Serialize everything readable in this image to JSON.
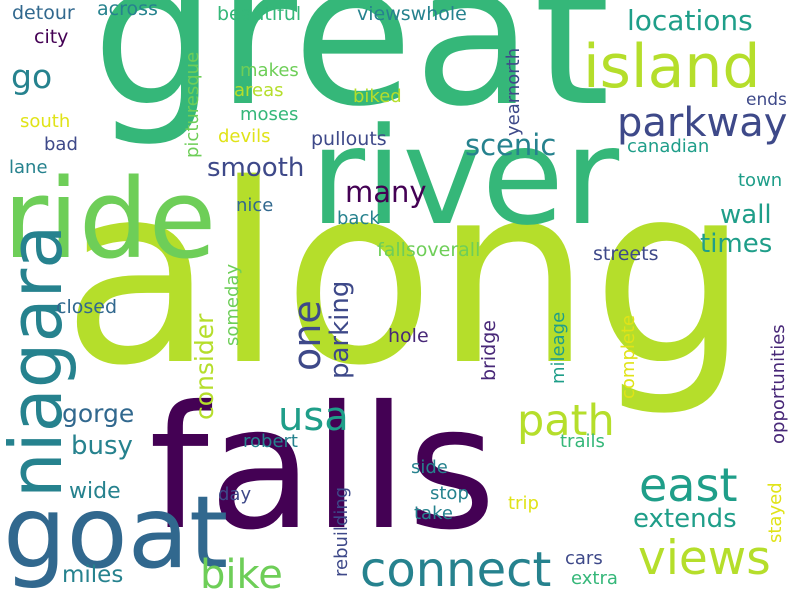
{
  "colors": {
    "background": "#ffffff",
    "dark_purple": "#440154",
    "purple": "#482878",
    "indigo": "#3e4989",
    "blue": "#31688e",
    "teal_blue": "#26828e",
    "teal": "#1f9e89",
    "green": "#35b779",
    "light_green": "#6ece58",
    "lime": "#b5de2b",
    "yellow": "#e0e318"
  },
  "words": [
    {
      "text": "along",
      "color": "#b5de2b"
    },
    {
      "text": "great",
      "color": "#35b779"
    },
    {
      "text": "falls",
      "color": "#440154"
    },
    {
      "text": "river",
      "color": "#35b779"
    },
    {
      "text": "ride",
      "color": "#6ece58"
    },
    {
      "text": "goat",
      "color": "#31688e"
    },
    {
      "text": "niagara",
      "color": "#26828e"
    },
    {
      "text": "island",
      "color": "#b5de2b"
    },
    {
      "text": "connect",
      "color": "#26828e"
    },
    {
      "text": "views",
      "color": "#b5de2b"
    },
    {
      "text": "parkway",
      "color": "#3e4989"
    },
    {
      "text": "east",
      "color": "#1f9e89"
    },
    {
      "text": "path",
      "color": "#b5de2b"
    },
    {
      "text": "bike",
      "color": "#6ece58"
    },
    {
      "text": "usa",
      "color": "#1f9e89"
    },
    {
      "text": "one",
      "color": "#3e4989"
    },
    {
      "text": "locations",
      "color": "#1f9e89"
    },
    {
      "text": "scenic",
      "color": "#26828e"
    },
    {
      "text": "go",
      "color": "#26828e"
    },
    {
      "text": "smooth",
      "color": "#3e4989"
    },
    {
      "text": "many",
      "color": "#440154"
    },
    {
      "text": "parking",
      "color": "#3e4989"
    },
    {
      "text": "consider",
      "color": "#b5de2b"
    },
    {
      "text": "wall",
      "color": "#1f9e89"
    },
    {
      "text": "times",
      "color": "#1f9e89"
    },
    {
      "text": "gorge",
      "color": "#31688e"
    },
    {
      "text": "busy",
      "color": "#26828e"
    },
    {
      "text": "extends",
      "color": "#1f9e89"
    },
    {
      "text": "miles",
      "color": "#26828e"
    },
    {
      "text": "wide",
      "color": "#26828e"
    },
    {
      "text": "beautiful",
      "color": "#35b779"
    },
    {
      "text": "viewswhole",
      "color": "#26828e"
    },
    {
      "text": "detour",
      "color": "#31688e"
    },
    {
      "text": "across",
      "color": "#26828e"
    },
    {
      "text": "city",
      "color": "#440154"
    },
    {
      "text": "picturesque",
      "color": "#6ece58"
    },
    {
      "text": "makes",
      "color": "#6ece58"
    },
    {
      "text": "areas",
      "color": "#b5de2b"
    },
    {
      "text": "moses",
      "color": "#35b779"
    },
    {
      "text": "biked",
      "color": "#b5de2b"
    },
    {
      "text": "devils",
      "color": "#e0e318"
    },
    {
      "text": "pullouts",
      "color": "#3e4989"
    },
    {
      "text": "south",
      "color": "#e0e318"
    },
    {
      "text": "bad",
      "color": "#3e4989"
    },
    {
      "text": "lane",
      "color": "#26828e"
    },
    {
      "text": "yearnorth",
      "color": "#3e4989"
    },
    {
      "text": "ends",
      "color": "#3e4989"
    },
    {
      "text": "canadian",
      "color": "#1f9e89"
    },
    {
      "text": "town",
      "color": "#1f9e89"
    },
    {
      "text": "nice",
      "color": "#31688e"
    },
    {
      "text": "back",
      "color": "#26828e"
    },
    {
      "text": "fallsoverall",
      "color": "#6ece58"
    },
    {
      "text": "streets",
      "color": "#3e4989"
    },
    {
      "text": "closed",
      "color": "#31688e"
    },
    {
      "text": "someday",
      "color": "#6ece58"
    },
    {
      "text": "hole",
      "color": "#482878"
    },
    {
      "text": "bridge",
      "color": "#482878"
    },
    {
      "text": "mileage",
      "color": "#1f9e89"
    },
    {
      "text": "complete",
      "color": "#e0e318"
    },
    {
      "text": "opportunities",
      "color": "#482878"
    },
    {
      "text": "robert",
      "color": "#26828e"
    },
    {
      "text": "trails",
      "color": "#35b779"
    },
    {
      "text": "day",
      "color": "#3e4989"
    },
    {
      "text": "side",
      "color": "#26828e"
    },
    {
      "text": "rebuilding",
      "color": "#3e4989"
    },
    {
      "text": "stop",
      "color": "#26828e"
    },
    {
      "text": "take",
      "color": "#26828e"
    },
    {
      "text": "trip",
      "color": "#e0e318"
    },
    {
      "text": "stayed",
      "color": "#e0e318"
    },
    {
      "text": "cars",
      "color": "#3e4989"
    },
    {
      "text": "extra",
      "color": "#35b779"
    }
  ]
}
